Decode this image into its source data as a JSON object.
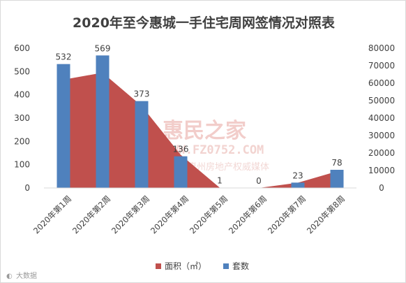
{
  "chart_data": {
    "type": "bar",
    "title": "2020年至今惠城一手住宅周网签情况对照表",
    "categories": [
      "2020年第1周",
      "2020年第2周",
      "2020年第3周",
      "2020年第4周",
      "2020年第5周",
      "2020年第6周",
      "2020年第7周",
      "2020年第8周"
    ],
    "series": [
      {
        "name": "面积（㎡）",
        "type": "area",
        "axis": "right",
        "color": "#c0504d",
        "values": [
          62000,
          66000,
          47000,
          19000,
          150,
          0,
          3000,
          9500
        ]
      },
      {
        "name": "套数",
        "type": "bar",
        "axis": "left",
        "color": "#4f81bd",
        "values": [
          532,
          569,
          373,
          136,
          1,
          0,
          23,
          78
        ]
      }
    ],
    "ylim_left": [
      0,
      600
    ],
    "ylim_right": [
      0,
      80000
    ],
    "yticks_left": [
      0,
      100,
      200,
      300,
      400,
      500,
      600
    ],
    "yticks_right": [
      0,
      10000,
      20000,
      30000,
      40000,
      50000,
      60000,
      70000,
      80000
    ],
    "grid": false,
    "legend_position": "bottom",
    "data_labels": [
      "532",
      "569",
      "373",
      "136",
      "1",
      "0",
      "23",
      "78"
    ]
  },
  "watermark": {
    "brand": "惠民之家",
    "url": "WWW.FZ0752.COM",
    "slogan": "惠州房地产权威媒体"
  },
  "credit": "大数据"
}
